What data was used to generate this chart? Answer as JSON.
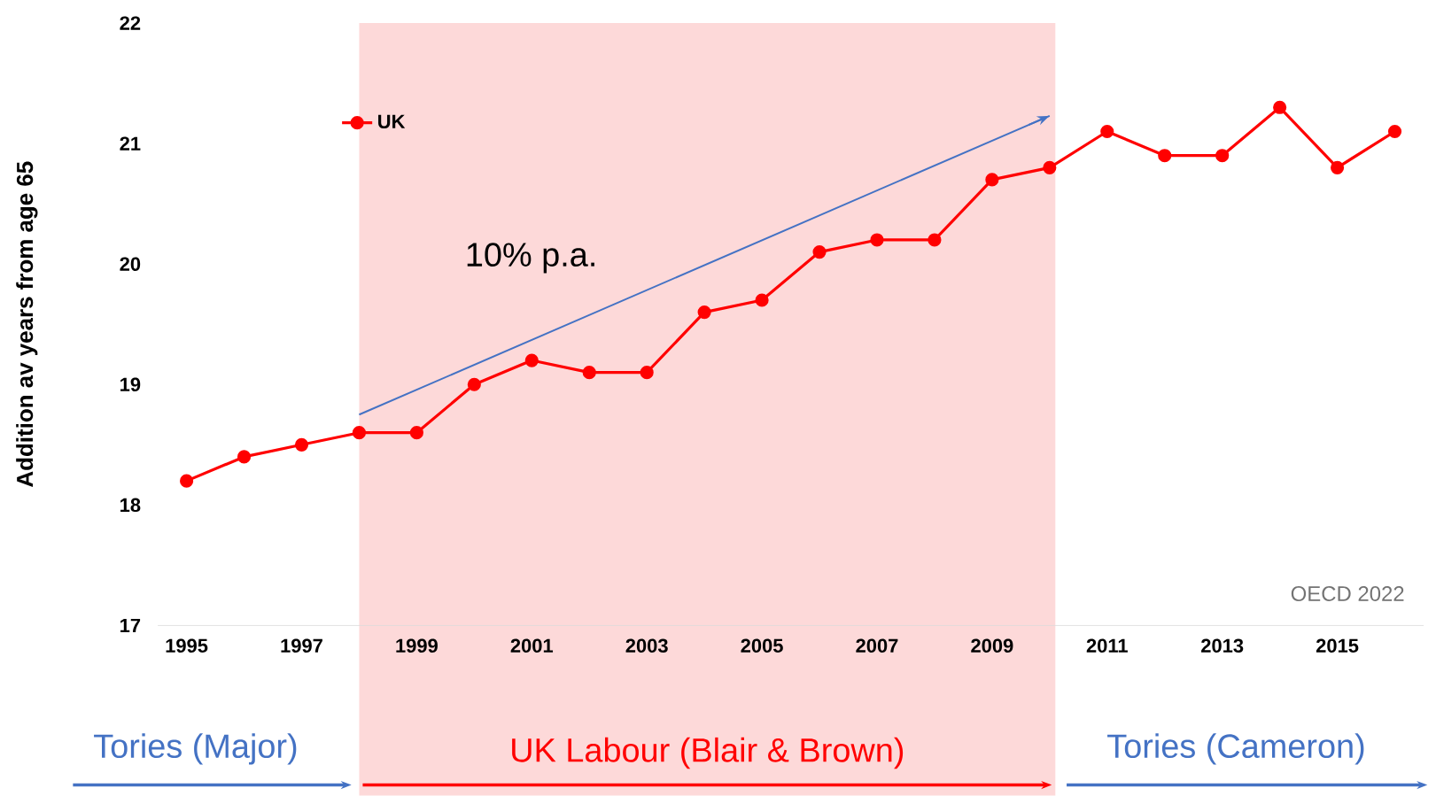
{
  "chart_data": {
    "type": "line",
    "ylabel": "Addition av years from age 65",
    "x": [
      1995,
      1996,
      1997,
      1998,
      1999,
      2000,
      2001,
      2002,
      2003,
      2004,
      2005,
      2006,
      2007,
      2008,
      2009,
      2010,
      2011,
      2012,
      2013,
      2014,
      2015,
      2016
    ],
    "series": [
      {
        "name": "UK",
        "color": "#ff0000",
        "values": [
          18.2,
          18.4,
          18.5,
          18.6,
          18.6,
          19.0,
          19.2,
          19.1,
          19.1,
          19.6,
          19.7,
          20.1,
          20.2,
          20.2,
          20.7,
          20.8,
          21.1,
          20.9,
          20.9,
          21.3,
          20.8,
          21.1
        ]
      },
      {
        "type": "line",
        "color": "#4472c4",
        "marker": "none",
        "x": [
          1998,
          2010
        ],
        "values": [
          18.75,
          21.23
        ]
      }
    ],
    "xlim": [
      1994.5,
      2016.5
    ],
    "ylim": [
      17,
      22
    ],
    "xticks": [
      1995,
      1997,
      1999,
      2001,
      2003,
      2005,
      2007,
      2009,
      2011,
      2013,
      2015
    ],
    "yticks": [
      17,
      18,
      19,
      20,
      21,
      22
    ],
    "marker": "circle",
    "legend": "top left",
    "grid": false,
    "bands": [
      {
        "axis": "x",
        "from": 1998,
        "to": 2010.1,
        "label": "UK Labour (Blair & Brown)",
        "color": "#fdd9d9"
      }
    ],
    "annotations": [
      "10% p.a.",
      "Tories (Major)",
      "Tories (Cameron)",
      "OECD 2022"
    ]
  }
}
